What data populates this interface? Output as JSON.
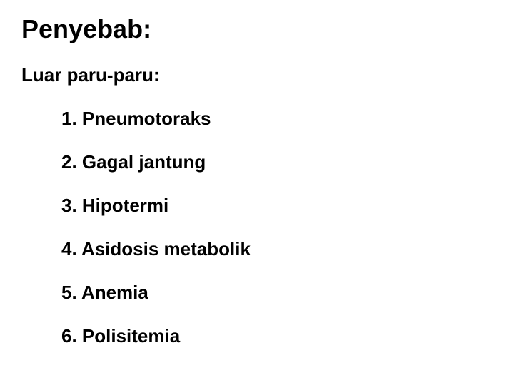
{
  "title": "Penyebab:",
  "subtitle": "Luar paru-paru:",
  "items": [
    "1. Pneumotoraks",
    "2. Gagal jantung",
    "3. Hipotermi",
    "4. Asidosis metabolik",
    "5. Anemia",
    "6. Polisitemia"
  ],
  "styling": {
    "background_color": "#ffffff",
    "text_color": "#000000",
    "title_fontsize": 36,
    "subtitle_fontsize": 26,
    "item_fontsize": 26,
    "font_weight": "bold",
    "font_family": "Arial"
  }
}
